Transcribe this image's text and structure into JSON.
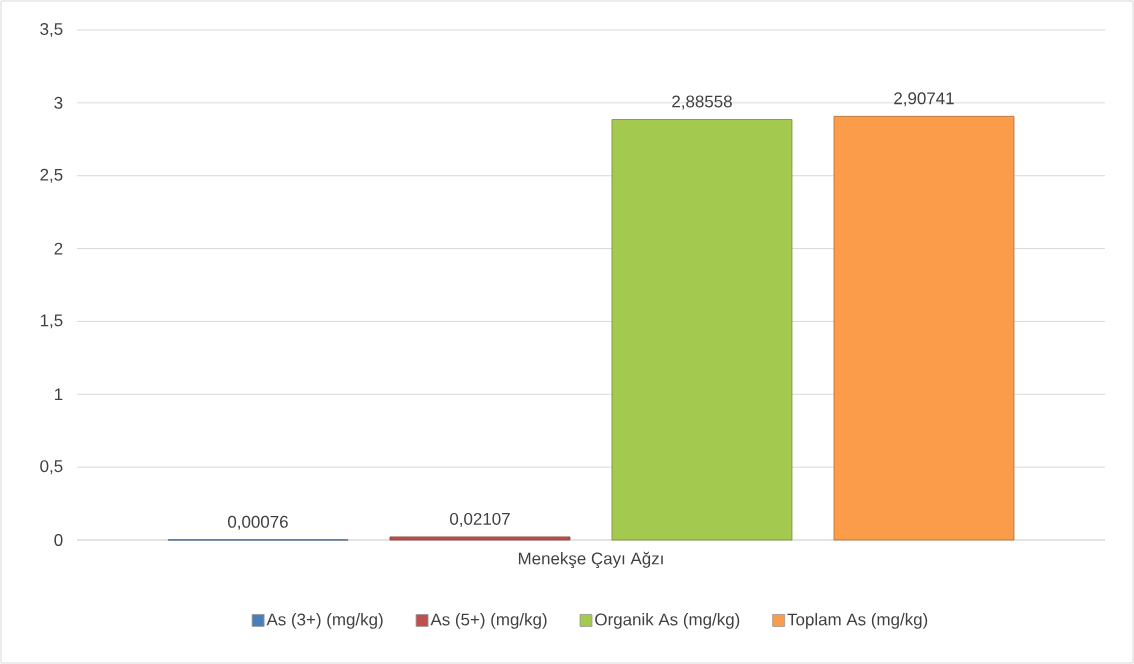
{
  "chart_data": {
    "type": "bar",
    "categories": [
      "Menekşe Çayı Ağzı"
    ],
    "series": [
      {
        "name": "As (3+) (mg/kg)",
        "color": "#4a7ebb",
        "values": [
          0.00076
        ],
        "value_labels": [
          "0,00076"
        ]
      },
      {
        "name": "As (5+) (mg/kg)",
        "color": "#c0504d",
        "values": [
          0.02107
        ],
        "value_labels": [
          "0,02107"
        ]
      },
      {
        "name": "Organik As (mg/kg)",
        "color": "#a3c94f",
        "values": [
          2.88558
        ],
        "value_labels": [
          "2,88558"
        ]
      },
      {
        "name": "Toplam As (mg/kg)",
        "color": "#fb9c4b",
        "values": [
          2.90741
        ],
        "value_labels": [
          "2,90741"
        ]
      }
    ],
    "ylim": [
      0,
      3.5
    ],
    "yticks": [
      0,
      {
        "value": 0.5,
        "label": "0,5"
      },
      1,
      {
        "value": 1.5,
        "label": "1,5"
      },
      2,
      {
        "value": 2.5,
        "label": "2,5"
      },
      3,
      {
        "value": 3.5,
        "label": "3,5"
      }
    ],
    "grid": "y",
    "legend": "bottom"
  }
}
